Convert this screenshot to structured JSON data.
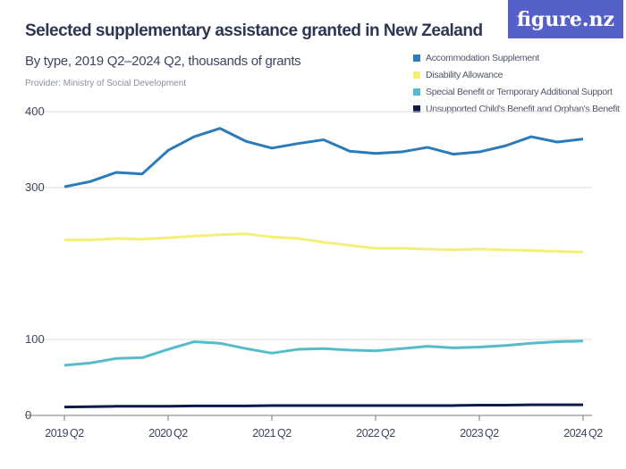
{
  "header": {
    "title": "Selected supplementary assistance granted in New Zealand",
    "subtitle": "By type, 2019 Q2–2024 Q2, thousands of grants",
    "provider": "Provider: Ministry of Social Development",
    "logo": "figure.nz"
  },
  "chart_data": {
    "type": "line",
    "title": "Selected supplementary assistance granted in New Zealand",
    "subtitle": "By type, 2019 Q2–2024 Q2, thousands of grants",
    "x": [
      "2019 Q2",
      "2019 Q3",
      "2019 Q4",
      "2020 Q1",
      "2020 Q2",
      "2020 Q3",
      "2020 Q4",
      "2021 Q1",
      "2021 Q2",
      "2021 Q3",
      "2021 Q4",
      "2022 Q1",
      "2022 Q2",
      "2022 Q3",
      "2022 Q4",
      "2023 Q1",
      "2023 Q2",
      "2023 Q3",
      "2023 Q4",
      "2024 Q1",
      "2024 Q2"
    ],
    "xticks": [
      "2019 Q2",
      "2020 Q2",
      "2021 Q2",
      "2022 Q2",
      "2023 Q2",
      "2024 Q2"
    ],
    "yticks": [
      "0",
      "100",
      "300",
      "400"
    ],
    "ylim": [
      0,
      400
    ],
    "grid": true,
    "legend": "top-right",
    "series": [
      {
        "name": "Accommodation Supplement",
        "color": "#2b7bba",
        "values": [
          301,
          308,
          320,
          318,
          349,
          367,
          378,
          361,
          352,
          358,
          363,
          348,
          345,
          347,
          353,
          344,
          347,
          355,
          367,
          360,
          364
        ]
      },
      {
        "name": "Disability Allowance",
        "color": "#f5ef7a",
        "values": [
          231,
          231,
          233,
          232,
          234,
          236,
          238,
          239,
          235,
          233,
          228,
          224,
          220,
          220,
          219,
          218,
          219,
          218,
          217,
          216,
          215
        ]
      },
      {
        "name": "Special Benefit or Temporary Additional Support",
        "color": "#55bccb",
        "values": [
          66,
          69,
          75,
          76,
          87,
          97,
          95,
          88,
          82,
          87,
          88,
          86,
          85,
          88,
          91,
          89,
          90,
          92,
          95,
          97,
          98
        ]
      },
      {
        "name": "Unsupported Child's Benefit and Orphan's Benefit",
        "color": "#0c1a4a",
        "values": [
          11,
          11.5,
          12,
          12,
          12,
          12.5,
          12.5,
          12.5,
          13,
          13,
          13,
          13,
          13,
          13,
          13,
          13,
          13.5,
          13.5,
          14,
          14,
          14
        ]
      }
    ]
  }
}
